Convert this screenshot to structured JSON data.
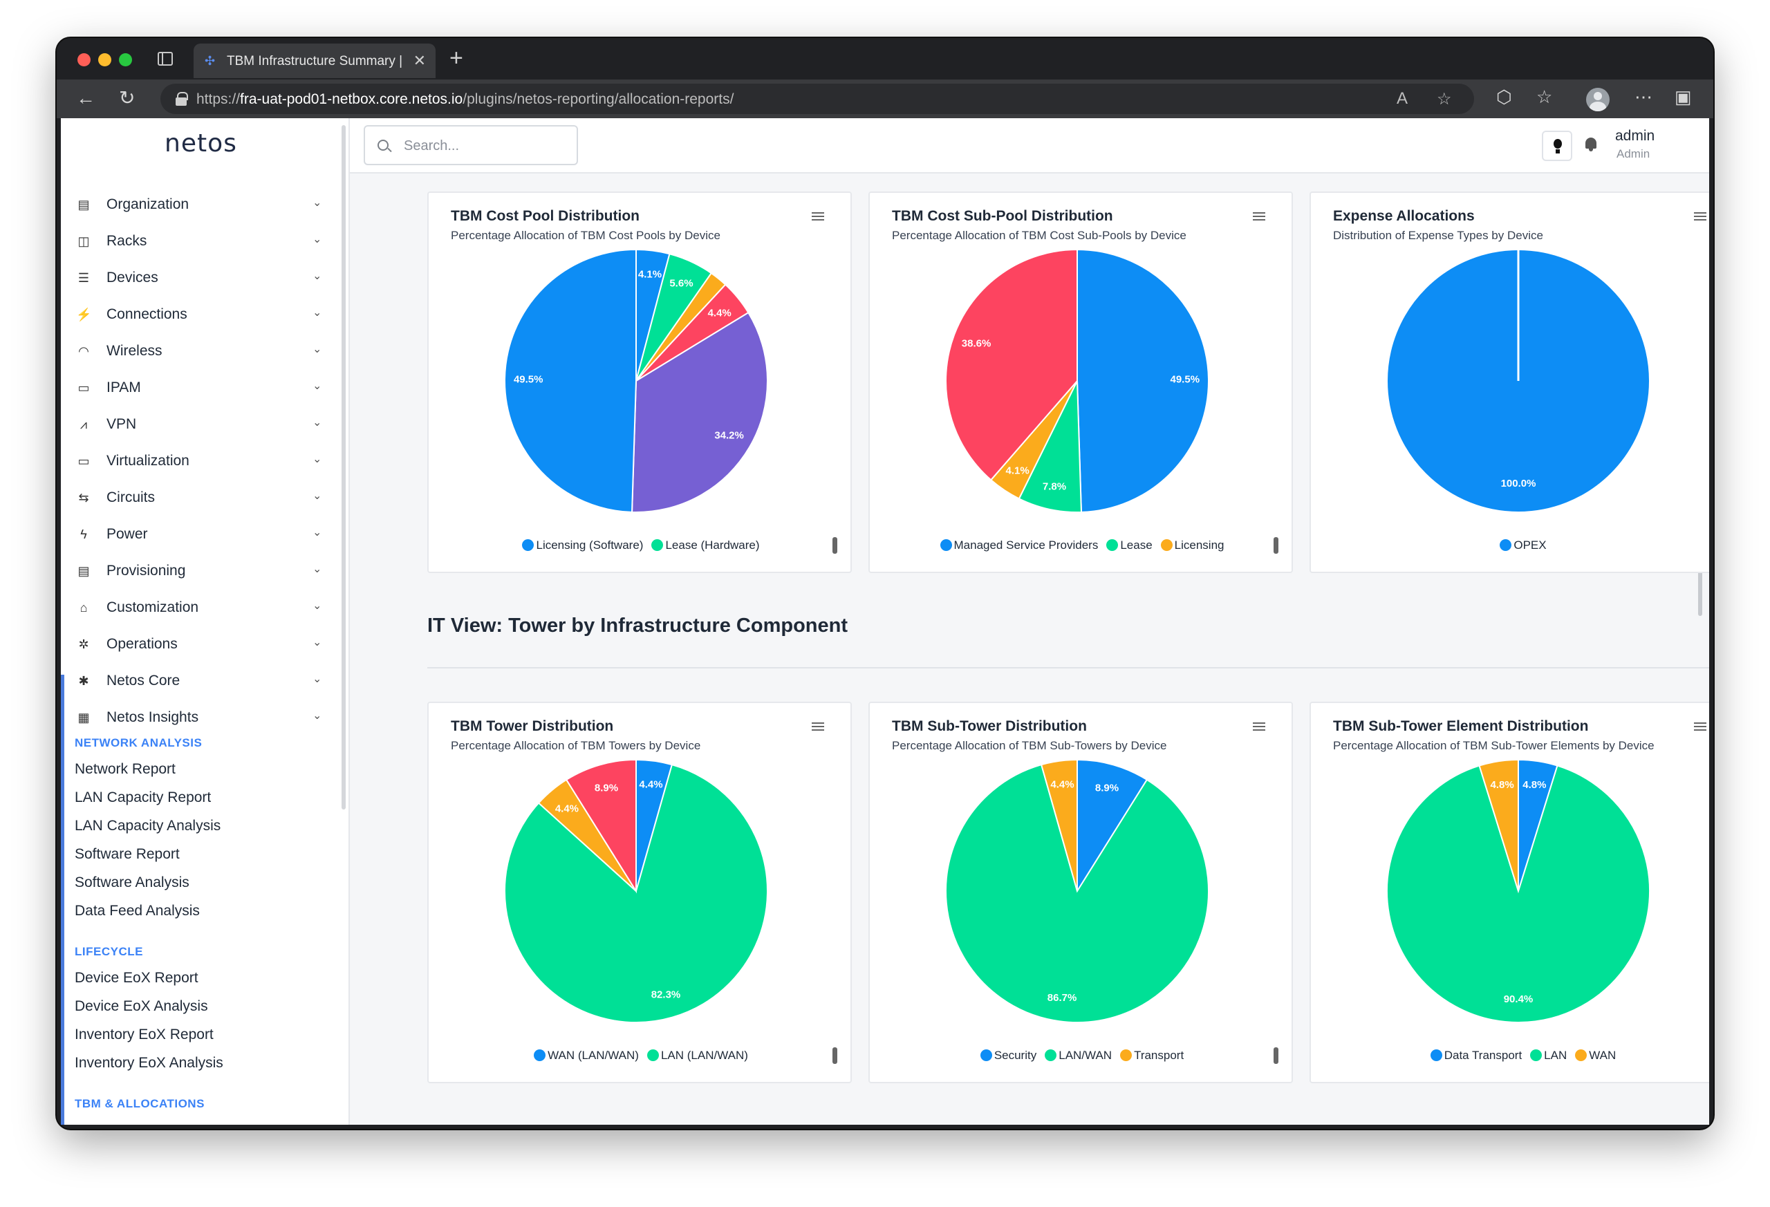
{
  "browser": {
    "tab_title": "TBM Infrastructure Summary | N",
    "url_prefix": "https://",
    "url_host": "fra-uat-pod01-netbox.core.netos.io",
    "url_path": "/plugins/netos-reporting/allocation-reports/"
  },
  "sidebar": {
    "logo": "netos",
    "menu": [
      {
        "label": "Organization",
        "icon": "building-icon"
      },
      {
        "label": "Racks",
        "icon": "rack-icon"
      },
      {
        "label": "Devices",
        "icon": "server-icon"
      },
      {
        "label": "Connections",
        "icon": "plug-icon"
      },
      {
        "label": "Wireless",
        "icon": "wifi-icon"
      },
      {
        "label": "IPAM",
        "icon": "ipam-icon"
      },
      {
        "label": "VPN",
        "icon": "vpn-icon"
      },
      {
        "label": "Virtualization",
        "icon": "monitor-icon"
      },
      {
        "label": "Circuits",
        "icon": "circuits-icon"
      },
      {
        "label": "Power",
        "icon": "bolt-icon"
      },
      {
        "label": "Provisioning",
        "icon": "document-icon"
      },
      {
        "label": "Customization",
        "icon": "toolbox-icon"
      },
      {
        "label": "Operations",
        "icon": "cogs-icon"
      },
      {
        "label": "Netos Core",
        "icon": "gear-icon"
      },
      {
        "label": "Netos Insights",
        "icon": "chart-icon"
      }
    ],
    "sections": [
      {
        "heading": "NETWORK ANALYSIS",
        "links": [
          "Network Report",
          "LAN Capacity Report",
          "LAN Capacity Analysis",
          "Software Report",
          "Software Analysis",
          "Data Feed Analysis"
        ]
      },
      {
        "heading": "LIFECYCLE",
        "links": [
          "Device EoX Report",
          "Device EoX Analysis",
          "Inventory EoX Report",
          "Inventory EoX Analysis"
        ]
      },
      {
        "heading": "TBM & ALLOCATIONS",
        "links": []
      }
    ]
  },
  "topbar": {
    "search_placeholder": "Search...",
    "user_name": "admin",
    "user_role": "Admin"
  },
  "section_title": "IT View: Tower by Infrastructure Component",
  "colors": {
    "blue": "#0d8df5",
    "green": "#00e096",
    "orange": "#fbab1c",
    "red": "#fd4460",
    "purple": "#7660d3"
  },
  "chart_data": [
    {
      "type": "pie",
      "title": "TBM Cost Pool Distribution",
      "subtitle": "Percentage Allocation of TBM Cost Pools by Device",
      "legend": [
        "Licensing (Software)",
        "Lease (Hardware)"
      ],
      "slices": [
        {
          "value": 4.1,
          "label": "4.1%",
          "color": "#0d8df5"
        },
        {
          "value": 5.6,
          "label": "5.6%",
          "color": "#00e096"
        },
        {
          "value": 2.2,
          "label": "",
          "color": "#fbab1c"
        },
        {
          "value": 4.4,
          "label": "4.4%",
          "color": "#fd4460"
        },
        {
          "value": 34.2,
          "label": "34.2%",
          "color": "#7660d3"
        },
        {
          "value": 49.5,
          "label": "49.5%",
          "color": "#0d8df5"
        }
      ],
      "legend_colors": [
        "#0d8df5",
        "#00e096"
      ]
    },
    {
      "type": "pie",
      "title": "TBM Cost Sub-Pool Distribution",
      "subtitle": "Percentage Allocation of TBM Cost Sub-Pools by Device",
      "legend": [
        "Managed Service Providers",
        "Lease",
        "Licensing"
      ],
      "slices": [
        {
          "value": 49.5,
          "label": "49.5%",
          "color": "#0d8df5"
        },
        {
          "value": 7.8,
          "label": "7.8%",
          "color": "#00e096"
        },
        {
          "value": 4.1,
          "label": "4.1%",
          "color": "#fbab1c"
        },
        {
          "value": 38.6,
          "label": "38.6%",
          "color": "#fd4460"
        }
      ],
      "legend_colors": [
        "#0d8df5",
        "#00e096",
        "#fbab1c"
      ]
    },
    {
      "type": "pie",
      "title": "Expense Allocations",
      "subtitle": "Distribution of Expense Types by Device",
      "legend": [
        "OPEX"
      ],
      "slices": [
        {
          "value": 100.0,
          "label": "100.0%",
          "color": "#0d8df5"
        }
      ],
      "legend_colors": [
        "#0d8df5"
      ]
    },
    {
      "type": "pie",
      "title": "TBM Tower Distribution",
      "subtitle": "Percentage Allocation of TBM Towers by Device",
      "legend": [
        "WAN (LAN/WAN)",
        "LAN (LAN/WAN)"
      ],
      "slices": [
        {
          "value": 4.4,
          "label": "4.4%",
          "color": "#0d8df5"
        },
        {
          "value": 82.3,
          "label": "82.3%",
          "color": "#00e096"
        },
        {
          "value": 4.4,
          "label": "4.4%",
          "color": "#fbab1c"
        },
        {
          "value": 8.9,
          "label": "8.9%",
          "color": "#fd4460"
        }
      ],
      "legend_colors": [
        "#0d8df5",
        "#00e096"
      ]
    },
    {
      "type": "pie",
      "title": "TBM Sub-Tower Distribution",
      "subtitle": "Percentage Allocation of TBM Sub-Towers by Device",
      "legend": [
        "Security",
        "LAN/WAN",
        "Transport"
      ],
      "slices": [
        {
          "value": 8.9,
          "label": "8.9%",
          "color": "#0d8df5"
        },
        {
          "value": 86.7,
          "label": "86.7%",
          "color": "#00e096"
        },
        {
          "value": 4.4,
          "label": "4.4%",
          "color": "#fbab1c"
        }
      ],
      "legend_colors": [
        "#0d8df5",
        "#00e096",
        "#fbab1c"
      ]
    },
    {
      "type": "pie",
      "title": "TBM Sub-Tower Element Distribution",
      "subtitle": "Percentage Allocation of TBM Sub-Tower Elements by Device",
      "legend": [
        "Data Transport",
        "LAN",
        "WAN"
      ],
      "slices": [
        {
          "value": 4.8,
          "label": "4.8%",
          "color": "#0d8df5"
        },
        {
          "value": 90.4,
          "label": "90.4%",
          "color": "#00e096"
        },
        {
          "value": 4.8,
          "label": "4.8%",
          "color": "#fbab1c"
        }
      ],
      "legend_colors": [
        "#0d8df5",
        "#00e096",
        "#fbab1c"
      ]
    }
  ]
}
